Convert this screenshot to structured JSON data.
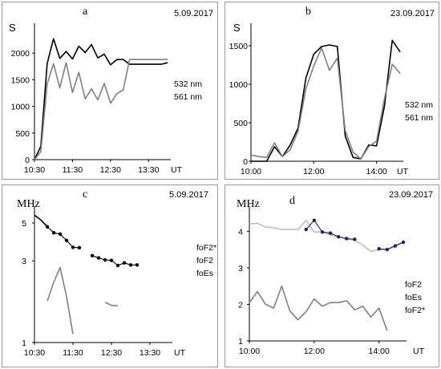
{
  "panels": [
    {
      "letter": "a",
      "date": "5.09.2017",
      "unit": "S",
      "chart_data": {
        "type": "line",
        "x_axis": "time",
        "x": [
          "10:30",
          "10:40",
          "10:50",
          "11:00",
          "11:10",
          "11:20",
          "11:30",
          "11:40",
          "11:50",
          "12:00",
          "12:10",
          "12:20",
          "12:30",
          "12:40",
          "12:50",
          "13:00",
          "13:10",
          "13:20",
          "13:30",
          "13:40",
          "13:50",
          "14:00"
        ],
        "xticks": [
          "10:30",
          "11:30",
          "12:30",
          "13:30"
        ],
        "xunit": "UT",
        "ylim": [
          0,
          2500
        ],
        "yticks": [
          0,
          500,
          1000,
          1500,
          2000
        ],
        "series": [
          {
            "name": "532 nm",
            "color": "#000000",
            "values": [
              0,
              250,
              1800,
              2270,
              1900,
              2030,
              1890,
              2130,
              2010,
              2160,
              1910,
              1980,
              1780,
              1880,
              1880,
              1790,
              1790,
              1790,
              1790,
              1790,
              1790,
              1820
            ]
          },
          {
            "name": "561 nm",
            "color": "#808080",
            "values": [
              0,
              150,
              1420,
              1800,
              1350,
              1820,
              1260,
              1640,
              1140,
              1330,
              1120,
              1430,
              1060,
              1240,
              1310,
              1880,
              1880,
              1880,
              1880,
              1880,
              1880,
              1880
            ]
          }
        ]
      }
    },
    {
      "letter": "b",
      "date": "23.09.2017",
      "unit": "S",
      "chart_data": {
        "type": "line",
        "x_axis": "time",
        "x": [
          "10:00",
          "10:15",
          "10:30",
          "10:45",
          "11:00",
          "11:15",
          "11:30",
          "11:45",
          "12:00",
          "12:15",
          "12:30",
          "12:45",
          "13:00",
          "13:15",
          "13:30",
          "13:45",
          "14:00",
          "14:15",
          "14:30",
          "14:45"
        ],
        "xticks": [
          "10:00",
          "12:00",
          "14:00"
        ],
        "xunit": "UT",
        "ylim": [
          0,
          1750
        ],
        "yticks": [
          0,
          500,
          1000,
          1500
        ],
        "series": [
          {
            "name": "532 nm",
            "color": "#000000",
            "values": [
              0,
              0,
              0,
              190,
              60,
              210,
              430,
              1080,
              1390,
              1490,
              1510,
              1490,
              330,
              50,
              30,
              210,
              200,
              710,
              1570,
              1420
            ]
          },
          {
            "name": "561 nm",
            "color": "#808080",
            "values": [
              80,
              60,
              50,
              240,
              60,
              150,
              390,
              940,
              1240,
              1470,
              1180,
              1340,
              400,
              120,
              30,
              190,
              260,
              810,
              1260,
              1140
            ]
          }
        ]
      }
    },
    {
      "letter": "c",
      "date": "5.09.2017",
      "unit": "MHz",
      "chart_data": {
        "type": "line",
        "x_axis": "time",
        "x": [
          "10:30",
          "10:40",
          "10:50",
          "11:00",
          "11:10",
          "11:20",
          "11:30",
          "11:40",
          "11:50",
          "12:00",
          "12:10",
          "12:20",
          "12:30",
          "12:40",
          "12:50",
          "13:00",
          "13:10",
          "13:20",
          "13:30",
          "13:40",
          "13:50",
          "14:00"
        ],
        "xticks": [
          "10:30",
          "11:30",
          "12:30",
          "13:30"
        ],
        "xunit": "UT",
        "yscale": "log",
        "ylim": [
          1,
          6
        ],
        "yticks": [
          1,
          3,
          5
        ],
        "series": [
          {
            "name": "foF2*",
            "color": "#000000",
            "marker": "circle",
            "values": [
              null,
              null,
              4.75,
              4.38,
              4.3,
              3.95,
              3.6,
              3.58,
              null,
              3.22,
              3.12,
              3.04,
              3.02,
              2.82,
              2.92,
              2.84,
              2.84,
              null,
              null,
              null,
              null,
              null
            ]
          },
          {
            "name": "foF2",
            "color": "#000000",
            "values": [
              5.55,
              5.2,
              4.75,
              null,
              null,
              null,
              null,
              null,
              null,
              null,
              null,
              null,
              null,
              null,
              null,
              null,
              null,
              null,
              null,
              null,
              null,
              null
            ]
          },
          {
            "name": "foEs",
            "color": "#808080",
            "values": [
              null,
              null,
              1.75,
              2.25,
              2.75,
              1.85,
              1.12,
              null,
              null,
              null,
              null,
              1.72,
              1.65,
              1.64,
              null,
              null,
              null,
              null,
              null,
              null,
              null,
              null
            ]
          }
        ]
      }
    },
    {
      "letter": "d",
      "date": "23.09.2017",
      "unit": "MHz",
      "chart_data": {
        "type": "line",
        "x_axis": "time",
        "x": [
          "10:00",
          "10:15",
          "10:30",
          "10:45",
          "11:00",
          "11:15",
          "11:30",
          "11:45",
          "12:00",
          "12:15",
          "12:30",
          "12:45",
          "13:00",
          "13:15",
          "13:30",
          "13:45",
          "14:00",
          "14:15",
          "14:30",
          "14:45"
        ],
        "xticks": [
          "10:00",
          "12:00",
          "14:00"
        ],
        "xunit": "UT",
        "ylim": [
          1,
          4.6
        ],
        "yticks": [
          1,
          2,
          3,
          4
        ],
        "series": [
          {
            "name": "foF2",
            "color": "#bfbfbf",
            "values": [
              4.2,
              4.22,
              4.12,
              4.1,
              4.05,
              4.05,
              4.05,
              4.3,
              3.98,
              3.98,
              3.9,
              3.85,
              3.8,
              3.75,
              3.62,
              3.45,
              3.5,
              3.5,
              3.62,
              3.7
            ]
          },
          {
            "name": "foEs",
            "color": "#808080",
            "values": [
              2.05,
              2.35,
              2.0,
              1.9,
              2.5,
              1.82,
              1.58,
              1.8,
              2.15,
              1.95,
              2.05,
              2.05,
              2.1,
              1.85,
              1.95,
              1.65,
              1.9,
              1.28,
              null,
              null
            ]
          },
          {
            "name": "foF2*",
            "color": "#1f1f6e",
            "marker": "circle",
            "values": [
              null,
              null,
              null,
              null,
              null,
              null,
              null,
              4.05,
              4.3,
              3.98,
              3.95,
              3.85,
              3.8,
              3.78,
              null,
              null,
              3.52,
              3.5,
              3.6,
              3.7
            ]
          }
        ]
      }
    }
  ]
}
